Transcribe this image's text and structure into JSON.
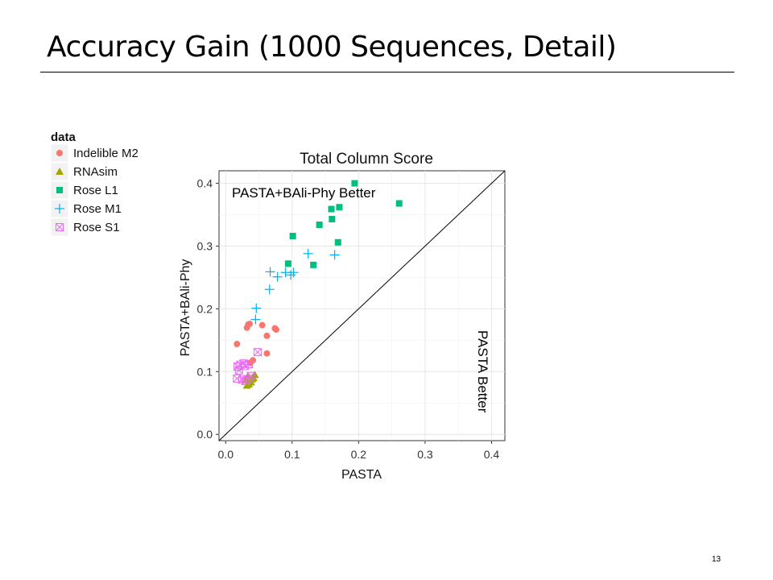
{
  "slide": {
    "title": "Accuracy Gain (1000 Sequences, Detail)",
    "page_number": "13"
  },
  "chart_data": {
    "type": "scatter",
    "title": "Total Column Score",
    "xlabel": "PASTA",
    "ylabel": "PASTA+BAli-Phy",
    "xlim": [
      -0.01,
      0.42
    ],
    "ylim": [
      -0.01,
      0.42
    ],
    "x_ticks": [
      0.0,
      0.1,
      0.2,
      0.3,
      0.4
    ],
    "y_ticks": [
      0.0,
      0.1,
      0.2,
      0.3,
      0.4
    ],
    "x_tick_labels": [
      "0.0",
      "0.1",
      "0.2",
      "0.3",
      "0.4"
    ],
    "y_tick_labels": [
      "0.0",
      "0.1",
      "0.2",
      "0.3",
      "0.4"
    ],
    "grid": true,
    "reference_line": "y = x",
    "annotations": [
      "PASTA+BAli-Phy Better",
      "PASTA Better"
    ],
    "legend": {
      "title": "data",
      "position": "left"
    },
    "series": [
      {
        "name": "Indelible M2",
        "marker": "circle",
        "color": "#F8766D",
        "points": [
          [
            0.017,
            0.144
          ],
          [
            0.032,
            0.17
          ],
          [
            0.034,
            0.175
          ],
          [
            0.036,
            0.176
          ],
          [
            0.055,
            0.174
          ],
          [
            0.062,
            0.157
          ],
          [
            0.074,
            0.169
          ],
          [
            0.076,
            0.167
          ],
          [
            0.041,
            0.118
          ],
          [
            0.062,
            0.129
          ],
          [
            0.037,
            0.114
          ]
        ]
      },
      {
        "name": "RNAsim",
        "marker": "triangle",
        "color": "#A3A500",
        "points": [
          [
            0.032,
            0.078
          ],
          [
            0.035,
            0.08
          ],
          [
            0.038,
            0.083
          ],
          [
            0.04,
            0.088
          ],
          [
            0.044,
            0.095
          ],
          [
            0.033,
            0.092
          ],
          [
            0.037,
            0.086
          ],
          [
            0.03,
            0.087
          ],
          [
            0.042,
            0.09
          ]
        ]
      },
      {
        "name": "Rose L1",
        "marker": "square",
        "color": "#00BF7D",
        "points": [
          [
            0.194,
            0.4
          ],
          [
            0.261,
            0.368
          ],
          [
            0.159,
            0.359
          ],
          [
            0.171,
            0.362
          ],
          [
            0.16,
            0.343
          ],
          [
            0.141,
            0.334
          ],
          [
            0.101,
            0.316
          ],
          [
            0.169,
            0.306
          ],
          [
            0.094,
            0.272
          ],
          [
            0.132,
            0.27
          ]
        ]
      },
      {
        "name": "Rose M1",
        "marker": "plus",
        "color": "#00B0F6",
        "points": [
          [
            0.124,
            0.288
          ],
          [
            0.164,
            0.286
          ],
          [
            0.067,
            0.259
          ],
          [
            0.078,
            0.251
          ],
          [
            0.09,
            0.258
          ],
          [
            0.102,
            0.258
          ],
          [
            0.098,
            0.254
          ],
          [
            0.066,
            0.231
          ],
          [
            0.046,
            0.201
          ],
          [
            0.045,
            0.183
          ]
        ]
      },
      {
        "name": "Rose S1",
        "marker": "square-x",
        "color": "#E76BF3",
        "points": [
          [
            0.018,
            0.108
          ],
          [
            0.022,
            0.111
          ],
          [
            0.027,
            0.113
          ],
          [
            0.029,
            0.109
          ],
          [
            0.035,
            0.112
          ],
          [
            0.048,
            0.131
          ],
          [
            0.017,
            0.089
          ],
          [
            0.025,
            0.087
          ],
          [
            0.03,
            0.085
          ],
          [
            0.033,
            0.088
          ],
          [
            0.038,
            0.093
          ],
          [
            0.02,
            0.102
          ]
        ]
      }
    ]
  }
}
